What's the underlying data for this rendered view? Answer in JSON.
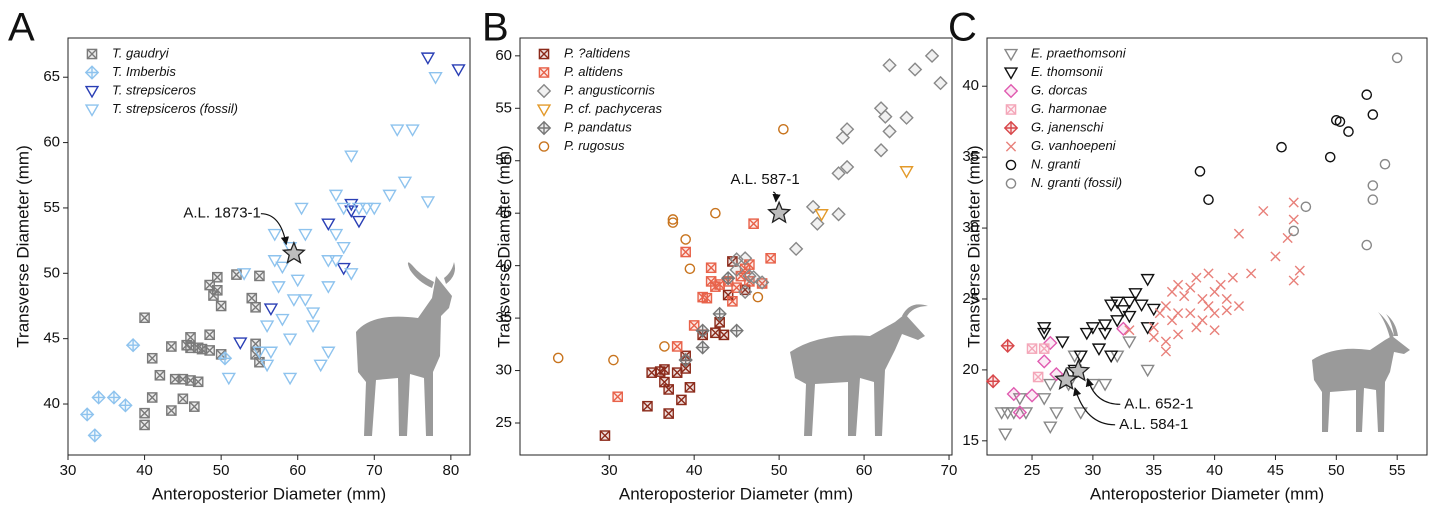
{
  "chart_data": [
    {
      "type": "scatter",
      "label": "A",
      "xlabel": "Anteroposterior Diameter (mm)",
      "ylabel": "Transverse Diameter (mm)",
      "xlim": [
        30,
        82.5
      ],
      "ylim": [
        36.1,
        68
      ],
      "xticks": [
        30,
        40,
        50,
        60,
        70,
        80
      ],
      "yticks": [
        40,
        45,
        50,
        55,
        60,
        65
      ],
      "legend": "upper left",
      "series": [
        {
          "name": "T. gaudryi",
          "color": "#7a7a7a",
          "marker": "x-box",
          "x": [
            40,
            40,
            40,
            41,
            41,
            42,
            43.5,
            44,
            45,
            45.5,
            46,
            46,
            46,
            46.5,
            47,
            47,
            47.5,
            43.5,
            45,
            48.5,
            48.5,
            48.5,
            49,
            49.5,
            49.5,
            50,
            50,
            52,
            54,
            54.5,
            55,
            54.5,
            54.5,
            55
          ],
          "y": [
            46.6,
            39.3,
            38.4,
            43.5,
            40.5,
            42.2,
            44.4,
            41.9,
            41.9,
            44.5,
            45.1,
            44.3,
            41.8,
            39.8,
            41.7,
            44.3,
            44.2,
            39.5,
            40.4,
            44.1,
            45.3,
            49.1,
            48.3,
            48.7,
            49.7,
            43.8,
            47.5,
            49.9,
            48.1,
            47.4,
            49.8,
            44.6,
            43.8,
            43.2
          ]
        },
        {
          "name": "T. Imberbis",
          "color": "#8ec3ee",
          "marker": "diamond-plus",
          "x": [
            32.5,
            33.5,
            34,
            36,
            37.5,
            38.5,
            50.5
          ],
          "y": [
            39.2,
            37.6,
            40.5,
            40.5,
            39.9,
            44.5,
            43.5
          ]
        },
        {
          "name": "T. strepsiceros",
          "color": "#2a3fb5",
          "marker": "triangle-down",
          "x": [
            52.5,
            56.5,
            64,
            66,
            67,
            67,
            68,
            77,
            81
          ],
          "y": [
            44.7,
            47.3,
            53.8,
            50.4,
            55.3,
            54.8,
            54.0,
            66.5,
            65.6
          ]
        },
        {
          "name": "T. strepsiceros (fossil)",
          "color": "#8ec3ee",
          "marker": "triangle-down",
          "x": [
            51,
            53,
            55,
            56,
            56.5,
            57,
            57,
            57.5,
            58,
            58,
            59,
            59,
            59.5,
            60,
            60.5,
            61,
            61,
            62,
            63,
            64,
            64,
            65,
            65,
            65,
            66,
            66,
            67,
            68,
            69,
            70,
            72,
            73,
            74,
            75,
            77,
            78,
            56,
            59,
            62,
            64,
            67
          ],
          "y": [
            42,
            50,
            44,
            46,
            44,
            53,
            51,
            49,
            50.5,
            46.5,
            45,
            42,
            48,
            49.5,
            55,
            53,
            48,
            47,
            43,
            44,
            49,
            51,
            53,
            56,
            55,
            52,
            59,
            55,
            55,
            55,
            56,
            61,
            57,
            61,
            55.5,
            65,
            43,
            52,
            46,
            51,
            50
          ]
        }
      ],
      "annotations": [
        {
          "text": "A.L. 1873-1",
          "x": 59.5,
          "y": 51.5
        }
      ]
    },
    {
      "type": "scatter",
      "label": "B",
      "xlabel": "Anteroposterior Diameter (mm)",
      "ylabel": "Transverse Diameter (mm)",
      "xlim": [
        19.5,
        70.35
      ],
      "ylim": [
        21.95,
        61.7
      ],
      "xticks": [
        30,
        40,
        50,
        60,
        70
      ],
      "yticks": [
        25,
        30,
        35,
        40,
        45,
        50,
        55,
        60
      ],
      "legend": "upper left",
      "series": [
        {
          "name": "P. ?altidens",
          "color": "#8b2a1a",
          "marker": "x-box",
          "x": [
            29.5,
            34.5,
            35,
            36,
            36.5,
            36.5,
            37,
            37,
            38,
            38.5,
            39,
            39,
            39.5,
            41,
            43,
            42.5,
            43.5,
            44,
            46,
            44.5
          ],
          "y": [
            23.8,
            26.6,
            29.8,
            29.9,
            30.1,
            28.9,
            25.9,
            28.2,
            29.8,
            27.2,
            30.2,
            31.4,
            28.4,
            33.4,
            34.6,
            33.6,
            33.4,
            37.2,
            37.7,
            40.4
          ]
        },
        {
          "name": "P. altidens",
          "color": "#e8624a",
          "marker": "x-box",
          "x": [
            31,
            38,
            39,
            40,
            41,
            41.5,
            42,
            42,
            42.5,
            43,
            44,
            44.5,
            45,
            45.5,
            46,
            46.5,
            46.5,
            47,
            48,
            49
          ],
          "y": [
            27.5,
            32.3,
            41.3,
            34.3,
            37,
            36.9,
            38.5,
            39.8,
            38,
            38.2,
            38.5,
            36.6,
            37.9,
            39,
            39.7,
            38.5,
            40.1,
            44,
            38.3,
            40.7
          ]
        },
        {
          "name": "P. angusticornis",
          "color": "#888888",
          "marker": "diamond",
          "x": [
            45,
            45,
            46,
            46,
            46.5,
            47,
            48,
            52,
            54,
            54.5,
            57,
            57,
            57.5,
            58,
            58,
            62,
            62,
            62.5,
            63,
            63,
            65,
            66,
            68,
            69
          ],
          "y": [
            39.6,
            40.6,
            40.7,
            37.5,
            39,
            38.9,
            38.4,
            41.6,
            45.6,
            44,
            44.9,
            48.8,
            52.2,
            53,
            49.4,
            51,
            55,
            54.2,
            52.8,
            59.1,
            54.1,
            58.7,
            60,
            57.4
          ]
        },
        {
          "name": "P. cf. pachyceras",
          "color": "#e39a2a",
          "marker": "triangle-down",
          "x": [
            55,
            65
          ],
          "y": [
            44.9,
            49
          ]
        },
        {
          "name": "P. pandatus",
          "color": "#777777",
          "marker": "diamond-plus",
          "x": [
            41,
            41,
            43,
            45,
            39,
            44
          ],
          "y": [
            33.8,
            32.2,
            35.4,
            33.8,
            31,
            38.8
          ]
        },
        {
          "name": "P. rugosus",
          "color": "#c8741e",
          "marker": "circle",
          "x": [
            24,
            30.5,
            36.5,
            37.5,
            37.5,
            39.5,
            39,
            42.5,
            47.5,
            50.5
          ],
          "y": [
            31.2,
            31,
            32.3,
            44.4,
            44.1,
            39.7,
            42.5,
            45,
            37,
            53
          ]
        }
      ],
      "annotations": [
        {
          "text": "A.L. 587-1",
          "x": 50,
          "y": 45
        }
      ]
    },
    {
      "type": "scatter",
      "label": "C",
      "xlabel": "Anteroposterior Diameter (mm)",
      "ylabel": "Transverse Diameter (mm)",
      "xlim": [
        21.3,
        57.45
      ],
      "ylim": [
        14,
        43.4
      ],
      "xticks": [
        25,
        30,
        35,
        40,
        45,
        50,
        55
      ],
      "yticks": [
        15,
        20,
        25,
        30,
        35,
        40
      ],
      "legend": "upper left",
      "series": [
        {
          "name": "E. praethomsoni",
          "color": "#888888",
          "marker": "triangle-down",
          "x": [
            22.5,
            22.8,
            23,
            23.5,
            24,
            24.5,
            26,
            26.5,
            27,
            28,
            29,
            30,
            31,
            32,
            33,
            34.5,
            26.5,
            28.5
          ],
          "y": [
            17,
            15.5,
            17,
            17,
            18,
            17,
            18,
            16,
            17,
            19,
            17,
            19,
            19,
            21,
            22,
            20,
            19,
            21
          ]
        },
        {
          "name": "E. thomsonii",
          "color": "#111111",
          "marker": "triangle-down",
          "x": [
            26,
            26,
            27.5,
            28.5,
            29,
            29.5,
            30,
            30.5,
            31,
            31,
            31.5,
            31.5,
            32,
            32.5,
            33,
            33,
            33.5,
            34,
            34.5,
            34.5,
            35,
            32
          ],
          "y": [
            23,
            22.6,
            22,
            20,
            21,
            22.6,
            23,
            21.5,
            23.2,
            22.6,
            24.6,
            21,
            24.8,
            24.2,
            24.8,
            23.8,
            25.4,
            24.6,
            23,
            26.4,
            24.3,
            23.5
          ]
        },
        {
          "name": "G. dorcas",
          "color": "#e05bb0",
          "marker": "diamond",
          "x": [
            23.5,
            25,
            26,
            26.5,
            27,
            32.5,
            24
          ],
          "y": [
            18.3,
            18.2,
            20.6,
            21.9,
            19.7,
            22.9,
            17
          ]
        },
        {
          "name": "G. harmonae",
          "color": "#f4a7b9",
          "marker": "x-box",
          "x": [
            25,
            26,
            25.5
          ],
          "y": [
            21.5,
            21.5,
            19.5
          ]
        },
        {
          "name": "G. janenschi",
          "color": "#d8474a",
          "marker": "diamond-plus",
          "x": [
            21.8,
            23
          ],
          "y": [
            19.2,
            21.7
          ]
        },
        {
          "name": "G. vanhoepeni",
          "color": "#e8807a",
          "marker": "x",
          "x": [
            33,
            35,
            35.5,
            36,
            36,
            36,
            36.5,
            37,
            37,
            37.5,
            38,
            38,
            38.5,
            39,
            39,
            39.5,
            40,
            40,
            40.5,
            41,
            41.5,
            42,
            42,
            43,
            44,
            45,
            46,
            46.5,
            46.5,
            47,
            46.5,
            37,
            38.5,
            40,
            41,
            36.5,
            39.5,
            35
          ],
          "y": [
            22.8,
            23,
            24,
            22,
            21.3,
            24.5,
            23.5,
            24,
            26,
            25.2,
            25.8,
            24,
            26.5,
            25,
            23.5,
            26.8,
            25.5,
            24,
            26,
            25,
            26.5,
            24.5,
            29.6,
            26.8,
            31.2,
            28,
            29.3,
            31.8,
            30.6,
            27,
            26.3,
            22.5,
            23,
            22.8,
            24.2,
            25.5,
            24.5,
            22.3
          ]
        },
        {
          "name": "N. granti",
          "color": "#111111",
          "marker": "circle",
          "x": [
            38.8,
            39.5,
            45.5,
            49.5,
            50,
            50.3,
            51,
            52.5,
            53
          ],
          "y": [
            34,
            32,
            35.7,
            35,
            37.6,
            37.5,
            36.8,
            39.4,
            38
          ]
        },
        {
          "name": "N. granti (fossil)",
          "color": "#888888",
          "marker": "circle",
          "x": [
            46.5,
            47.5,
            52.5,
            53,
            53,
            54,
            55
          ],
          "y": [
            29.8,
            31.5,
            28.8,
            32,
            33,
            34.5,
            42
          ]
        }
      ],
      "annotations": [
        {
          "text": "A.L. 652-1",
          "x": 28.8,
          "y": 19.9
        },
        {
          "text": "A.L. 584-1",
          "x": 27.8,
          "y": 19.3
        }
      ]
    }
  ]
}
